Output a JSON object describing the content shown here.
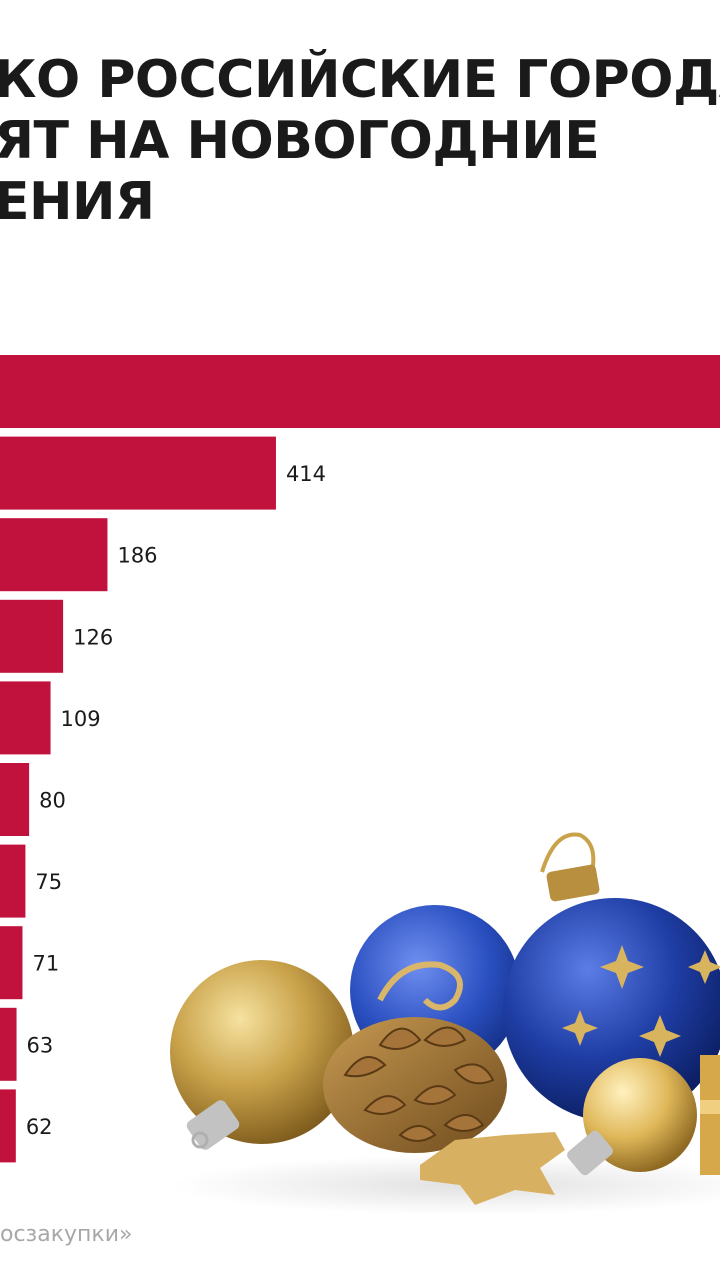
{
  "title": {
    "line1": "КО РОССИЙСКИЕ ГОРОДА",
    "line2": "ЯТ НА НОВОГОДНИЕ",
    "line3": "ЕНИЯ"
  },
  "source": "осзакупки»",
  "colors": {
    "bar": "#c0123d",
    "label": "#1a1a1a",
    "source": "#a8a8a8"
  },
  "chart_data": {
    "type": "bar",
    "orientation": "horizontal",
    "categories": [
      "",
      "",
      "",
      "",
      "",
      "",
      "",
      "",
      "",
      ""
    ],
    "values": [
      null,
      414,
      186,
      126,
      109,
      80,
      75,
      71,
      63,
      62
    ],
    "value_labels": [
      "",
      "414",
      "186",
      "126",
      "109",
      "80",
      "75",
      "71",
      "63",
      "62"
    ],
    "note": ""
  }
}
